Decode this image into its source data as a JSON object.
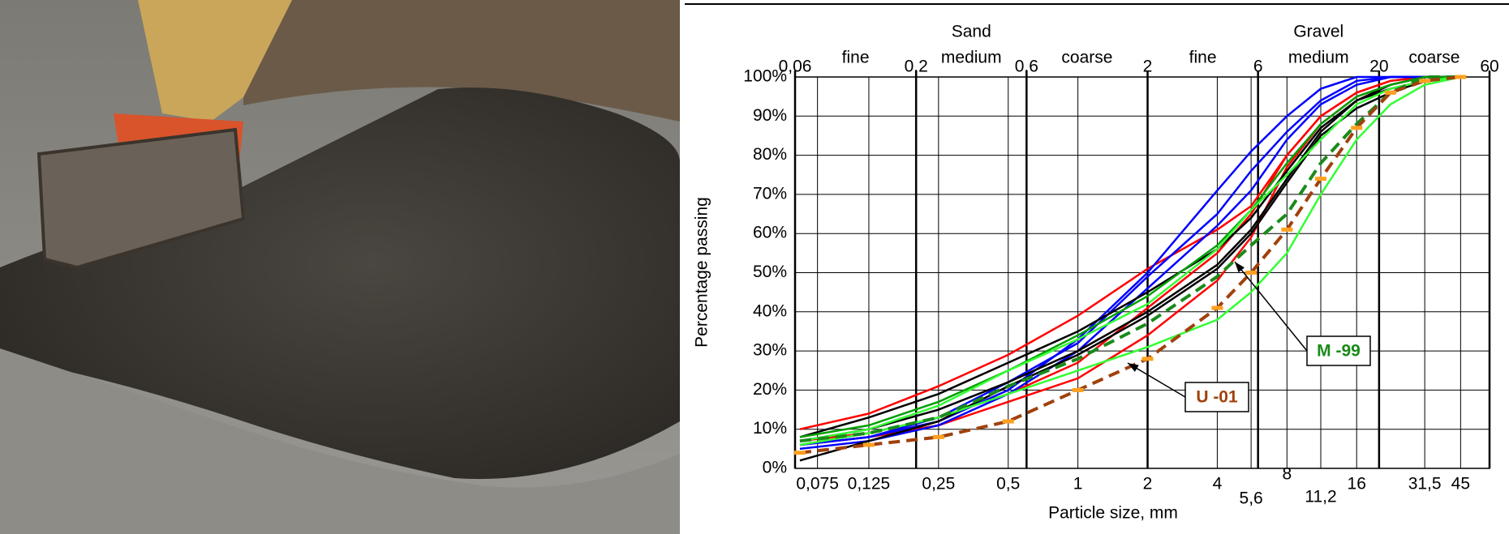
{
  "chart_data": {
    "type": "line",
    "x_label": "Particle size, mm",
    "y_label": "Percentage passing",
    "xscale": "log",
    "xlim": [
      0.06,
      60
    ],
    "ylim": [
      0,
      100
    ],
    "xticks": [
      {
        "value": 0.075,
        "label": "0,075"
      },
      {
        "value": 0.125,
        "label": "0,125"
      },
      {
        "value": 0.25,
        "label": "0,25"
      },
      {
        "value": 0.5,
        "label": "0,5"
      },
      1,
      2,
      4,
      {
        "value": 5.6,
        "label": "5,6"
      },
      8,
      {
        "value": 11.2,
        "label": "11,2"
      },
      16,
      {
        "value": 31.5,
        "label": "31,5"
      },
      45
    ],
    "x2ticks": [
      {
        "value": 0.06,
        "label": "0,06"
      },
      {
        "value": 0.2,
        "label": "0,2"
      },
      {
        "value": 0.6,
        "label": "0,6"
      },
      2,
      6,
      20,
      60
    ],
    "yticks": [
      {
        "value": 0,
        "label": "0%"
      },
      {
        "value": 10,
        "label": "10%"
      },
      {
        "value": 20,
        "label": "20%"
      },
      {
        "value": 30,
        "label": "30%"
      },
      {
        "value": 40,
        "label": "40%"
      },
      {
        "value": 50,
        "label": "50%"
      },
      {
        "value": 60,
        "label": "60%"
      },
      {
        "value": 70,
        "label": "70%"
      },
      {
        "value": 80,
        "label": "80%"
      },
      {
        "value": 90,
        "label": "90%"
      },
      {
        "value": 100,
        "label": "100%"
      }
    ],
    "grid": true,
    "groups": [
      {
        "label": "Sand",
        "parts": [
          "fine",
          "medium",
          "coarse"
        ]
      },
      {
        "label": "Gravel",
        "parts": [
          "fine",
          "medium",
          "coarse"
        ]
      }
    ],
    "callouts": [
      {
        "text": "M -99",
        "color": "#1a8a1a"
      },
      {
        "text": "U -01",
        "color": "#a0410d"
      }
    ],
    "x": [
      0.063,
      0.125,
      0.25,
      0.5,
      1,
      2,
      4,
      5.6,
      8,
      11.2,
      16,
      22.4,
      31.5,
      45
    ],
    "series": [
      {
        "color": "#ff0000",
        "values": [
          10,
          14,
          21,
          29,
          39,
          51,
          61,
          67,
          80,
          90,
          96,
          99,
          100,
          100
        ]
      },
      {
        "color": "#ff0000",
        "values": [
          7,
          9,
          13,
          19,
          27,
          41,
          55,
          65,
          80,
          90,
          96,
          99,
          100,
          100
        ]
      },
      {
        "color": "#ff0000",
        "values": [
          6,
          8,
          11,
          17,
          23,
          34,
          48,
          59,
          77,
          88,
          95,
          98,
          100,
          100
        ]
      },
      {
        "color": "#0000ff",
        "values": [
          6,
          8,
          12,
          20,
          33,
          50,
          71,
          81,
          90,
          97,
          100,
          100,
          100,
          100
        ]
      },
      {
        "color": "#0000ff",
        "values": [
          6,
          8,
          13,
          22,
          32,
          49,
          65,
          76,
          86,
          94,
          99,
          100,
          100,
          100
        ]
      },
      {
        "color": "#0000ff",
        "values": [
          5,
          7,
          11,
          19,
          30,
          46,
          62,
          71,
          84,
          93,
          98,
          100,
          100,
          100
        ]
      },
      {
        "color": "#000000",
        "values": [
          8,
          13,
          19,
          27,
          35,
          45,
          56,
          64,
          76,
          87,
          94,
          97,
          99,
          100
        ]
      },
      {
        "color": "#000000",
        "values": [
          2,
          7,
          12,
          21,
          29,
          39,
          51,
          60,
          73,
          85,
          92,
          96,
          99,
          100
        ]
      },
      {
        "color": "#000000",
        "values": [
          7,
          10,
          15,
          22,
          30,
          40,
          52,
          61,
          74,
          86,
          94,
          98,
          100,
          100
        ]
      },
      {
        "color": "#00a000",
        "values": [
          8,
          11,
          17,
          25,
          34,
          44,
          57,
          66,
          78,
          88,
          95,
          98,
          100,
          100
        ]
      },
      {
        "color": "#33ff33",
        "values": [
          7,
          10,
          16,
          25,
          33,
          42,
          56,
          66,
          75,
          84,
          93,
          97,
          99,
          100
        ]
      },
      {
        "color": "#33ff33",
        "values": [
          6,
          9,
          13,
          19,
          25,
          31,
          38,
          45,
          55,
          70,
          84,
          93,
          98,
          100
        ]
      },
      {
        "color": "#1a8a1a",
        "dash": true,
        "values": [
          7,
          9,
          13,
          21,
          28,
          37,
          49,
          57,
          65,
          78,
          88,
          96,
          100,
          100
        ]
      },
      {
        "color": "#a0410d",
        "dash": true,
        "marker_color": "#ffa020",
        "values": [
          4,
          6,
          8,
          12,
          20,
          28,
          41,
          50,
          61,
          74,
          87,
          96,
          99,
          100
        ]
      }
    ]
  }
}
